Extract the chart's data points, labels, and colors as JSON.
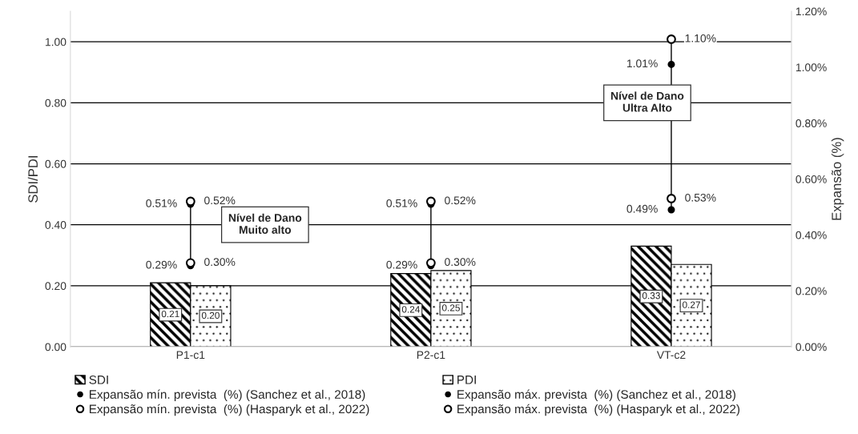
{
  "chart_data": {
    "type": "bar",
    "categories": [
      "P1-c1",
      "P2-c1",
      "VT-c2"
    ],
    "ylabel": "SDI/PDI",
    "y2label": "Expansão (%)",
    "ylim": [
      0,
      1.1
    ],
    "yticks": [
      {
        "value": 0,
        "label": "0.00"
      },
      {
        "value": 0.2,
        "label": "0.20"
      },
      {
        "value": 0.4,
        "label": "0.40"
      },
      {
        "value": 0.6,
        "label": "0.60"
      },
      {
        "value": 0.8,
        "label": "0.80"
      },
      {
        "value": 1.0,
        "label": "1.00"
      }
    ],
    "y2lim": [
      0,
      1.2
    ],
    "y2ticks": [
      {
        "value": 0,
        "label": "0.00%"
      },
      {
        "value": 0.2,
        "label": "0.20%"
      },
      {
        "value": 0.4,
        "label": "0.40%"
      },
      {
        "value": 0.6,
        "label": "0.60%"
      },
      {
        "value": 0.8,
        "label": "0.80%"
      },
      {
        "value": 1.0,
        "label": "1.00%"
      },
      {
        "value": 1.2,
        "label": "1.20%"
      }
    ],
    "grid": "y",
    "legend": "bottom",
    "annotations": [
      "Nível de Dano\nMuito alto",
      "Nível de Dano\nUltra Alto"
    ],
    "series": [
      {
        "name": "SDI",
        "color": "#000000",
        "values": [
          0.21,
          0.24,
          0.33
        ],
        "value_labels": [
          "0.21",
          "0.24",
          "0.33"
        ]
      },
      {
        "name": "PDI",
        "color": "#000000",
        "values": [
          0.2,
          0.25,
          0.27
        ],
        "value_labels": [
          "0.20",
          "0.25",
          "0.27"
        ]
      },
      {
        "name": "Expansão mín. prevista  (%) (Sanchez et al., 2018)",
        "type": "scatter",
        "axis": "y2",
        "marker": "circle",
        "color": "#000000",
        "values": [
          0.29,
          0.29,
          0.49
        ],
        "value_labels": [
          "0.29%",
          "0.29%",
          "0.49%"
        ]
      },
      {
        "name": "Expansão máx. prevista  (%) (Sanchez et al., 2018)",
        "type": "scatter",
        "axis": "y2",
        "marker": "circle",
        "color": "#000000",
        "values": [
          0.51,
          0.51,
          1.01
        ],
        "value_labels": [
          "0.51%",
          "0.51%",
          "1.01%"
        ]
      },
      {
        "name": "Expansão mín. prevista  (%) (Hasparyk et al., 2022)",
        "type": "scatter",
        "axis": "y2",
        "marker": "circle",
        "color": "#ffffff",
        "values": [
          0.3,
          0.3,
          0.53
        ],
        "value_labels": [
          "0.30%",
          "0.30%",
          "0.53%"
        ]
      },
      {
        "name": "Expansão máx. prevista  (%) (Hasparyk et al., 2022)",
        "type": "scatter",
        "axis": "y2",
        "marker": "circle",
        "color": "#ffffff",
        "values": [
          0.52,
          0.52,
          1.1
        ],
        "value_labels": [
          "0.52%",
          "0.52%",
          "1.10%"
        ]
      }
    ]
  }
}
